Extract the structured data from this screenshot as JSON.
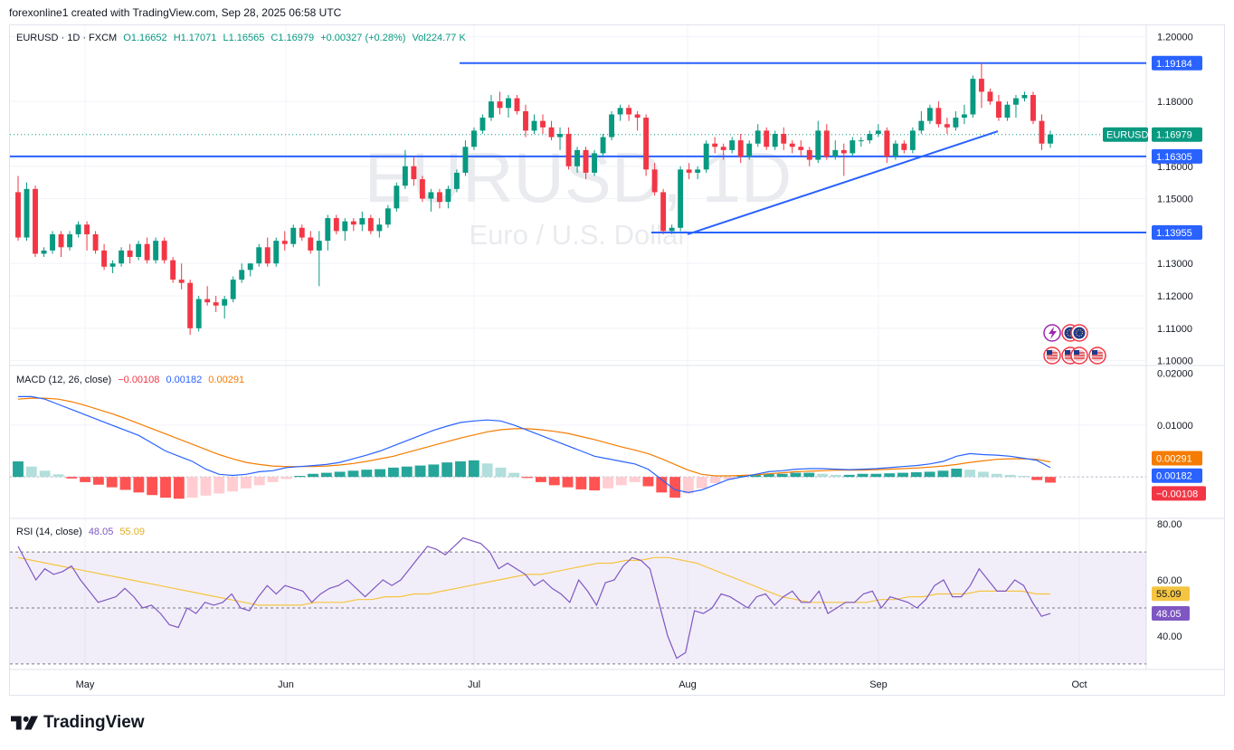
{
  "header": {
    "credit": "forexonline1 created with TradingView.com, Sep 28, 2025 06:58 UTC"
  },
  "legend": {
    "symbol": "EURUSD · 1D · FXCM",
    "open": "O1.16652",
    "high": "H1.17071",
    "low": "L1.16565",
    "close": "C1.16979",
    "change": "+0.00327 (+0.28%)",
    "volume": "Vol224.77 K"
  },
  "watermark": {
    "title": "EURUSD, 1D",
    "subtitle": "Euro / U.S. Dollar"
  },
  "macd_legend": {
    "label": "MACD (12, 26, close)",
    "hist": "−0.00108",
    "macd": "0.00182",
    "signal": "0.00291"
  },
  "rsi_legend": {
    "label": "RSI (14, close)",
    "rsi": "48.05",
    "ma": "55.09"
  },
  "brand": {
    "name": "TradingView"
  },
  "colors": {
    "up": "#089981",
    "down": "#f23645",
    "line": "#2962ff",
    "signal": "#f57c00",
    "rsi": "#7e57c2",
    "rsi_ma": "#f5c542"
  },
  "chart_data": [
    {
      "type": "candlestick",
      "ylim": [
        1.0985,
        1.2035
      ],
      "x_labels": [
        "May",
        "Jun",
        "Jul",
        "Aug",
        "Sep",
        "Oct"
      ],
      "y_ticks": [
        "1.20000",
        "1.18000",
        "1.16000",
        "1.15000",
        "1.13000",
        "1.12000",
        "1.11000",
        "1.10000"
      ],
      "price_labels": [
        {
          "text": "1.19184",
          "value": 1.19184
        },
        {
          "text": "1.16979",
          "value": 1.16979,
          "tag": "EURUSD"
        },
        {
          "text": "1.16305",
          "value": 1.16305
        },
        {
          "text": "1.13955",
          "value": 1.13955
        }
      ],
      "candles": [
        [
          1.152,
          1.157,
          1.137,
          1.138
        ],
        [
          1.138,
          1.155,
          1.137,
          1.153
        ],
        [
          1.153,
          1.154,
          1.132,
          1.133
        ],
        [
          1.133,
          1.135,
          1.132,
          1.134
        ],
        [
          1.134,
          1.14,
          1.133,
          1.139
        ],
        [
          1.139,
          1.14,
          1.132,
          1.135
        ],
        [
          1.135,
          1.14,
          1.134,
          1.139
        ],
        [
          1.139,
          1.143,
          1.138,
          1.142
        ],
        [
          1.142,
          1.143,
          1.134,
          1.139
        ],
        [
          1.139,
          1.14,
          1.133,
          1.134
        ],
        [
          1.134,
          1.136,
          1.128,
          1.129
        ],
        [
          1.129,
          1.131,
          1.127,
          1.13
        ],
        [
          1.13,
          1.135,
          1.129,
          1.134
        ],
        [
          1.134,
          1.136,
          1.13,
          1.132
        ],
        [
          1.132,
          1.137,
          1.131,
          1.136
        ],
        [
          1.136,
          1.138,
          1.13,
          1.131
        ],
        [
          1.131,
          1.138,
          1.13,
          1.137
        ],
        [
          1.137,
          1.138,
          1.13,
          1.131
        ],
        [
          1.131,
          1.132,
          1.124,
          1.125
        ],
        [
          1.125,
          1.13,
          1.122,
          1.124
        ],
        [
          1.124,
          1.125,
          1.108,
          1.11
        ],
        [
          1.11,
          1.12,
          1.109,
          1.119
        ],
        [
          1.119,
          1.123,
          1.117,
          1.118
        ],
        [
          1.118,
          1.12,
          1.115,
          1.117
        ],
        [
          1.117,
          1.12,
          1.113,
          1.119
        ],
        [
          1.119,
          1.126,
          1.118,
          1.125
        ],
        [
          1.125,
          1.13,
          1.124,
          1.128
        ],
        [
          1.128,
          1.13,
          1.126,
          1.13
        ],
        [
          1.13,
          1.136,
          1.129,
          1.135
        ],
        [
          1.135,
          1.138,
          1.129,
          1.13
        ],
        [
          1.13,
          1.138,
          1.129,
          1.137
        ],
        [
          1.137,
          1.14,
          1.134,
          1.136
        ],
        [
          1.136,
          1.142,
          1.135,
          1.141
        ],
        [
          1.141,
          1.142,
          1.137,
          1.138
        ],
        [
          1.138,
          1.14,
          1.133,
          1.134
        ],
        [
          1.134,
          1.14,
          1.123,
          1.137
        ],
        [
          1.137,
          1.145,
          1.134,
          1.144
        ],
        [
          1.144,
          1.145,
          1.139,
          1.14
        ],
        [
          1.14,
          1.144,
          1.137,
          1.143
        ],
        [
          1.143,
          1.144,
          1.14,
          1.142
        ],
        [
          1.142,
          1.146,
          1.14,
          1.144
        ],
        [
          1.144,
          1.145,
          1.139,
          1.14
        ],
        [
          1.14,
          1.144,
          1.138,
          1.142
        ],
        [
          1.142,
          1.148,
          1.141,
          1.147
        ],
        [
          1.147,
          1.155,
          1.146,
          1.154
        ],
        [
          1.154,
          1.165,
          1.153,
          1.16
        ],
        [
          1.16,
          1.163,
          1.154,
          1.156
        ],
        [
          1.156,
          1.157,
          1.149,
          1.15
        ],
        [
          1.15,
          1.153,
          1.146,
          1.152
        ],
        [
          1.152,
          1.153,
          1.147,
          1.149
        ],
        [
          1.149,
          1.154,
          1.147,
          1.153
        ],
        [
          1.153,
          1.159,
          1.152,
          1.158
        ],
        [
          1.158,
          1.168,
          1.157,
          1.166
        ],
        [
          1.166,
          1.172,
          1.165,
          1.171
        ],
        [
          1.171,
          1.176,
          1.17,
          1.175
        ],
        [
          1.175,
          1.182,
          1.174,
          1.18
        ],
        [
          1.18,
          1.183,
          1.176,
          1.178
        ],
        [
          1.178,
          1.182,
          1.175,
          1.181
        ],
        [
          1.181,
          1.182,
          1.176,
          1.177
        ],
        [
          1.177,
          1.179,
          1.169,
          1.171
        ],
        [
          1.171,
          1.176,
          1.17,
          1.174
        ],
        [
          1.174,
          1.176,
          1.17,
          1.172
        ],
        [
          1.172,
          1.174,
          1.168,
          1.169
        ],
        [
          1.169,
          1.172,
          1.165,
          1.17
        ],
        [
          1.17,
          1.172,
          1.159,
          1.16
        ],
        [
          1.16,
          1.166,
          1.158,
          1.165
        ],
        [
          1.165,
          1.166,
          1.156,
          1.158
        ],
        [
          1.158,
          1.165,
          1.157,
          1.164
        ],
        [
          1.164,
          1.17,
          1.163,
          1.169
        ],
        [
          1.169,
          1.177,
          1.168,
          1.176
        ],
        [
          1.176,
          1.179,
          1.174,
          1.178
        ],
        [
          1.178,
          1.179,
          1.174,
          1.176
        ],
        [
          1.176,
          1.177,
          1.171,
          1.175
        ],
        [
          1.175,
          1.176,
          1.157,
          1.159
        ],
        [
          1.159,
          1.161,
          1.151,
          1.152
        ],
        [
          1.152,
          1.153,
          1.139,
          1.14
        ],
        [
          1.14,
          1.142,
          1.139,
          1.141
        ],
        [
          1.141,
          1.16,
          1.14,
          1.159
        ],
        [
          1.159,
          1.161,
          1.156,
          1.158
        ],
        [
          1.158,
          1.16,
          1.156,
          1.159
        ],
        [
          1.159,
          1.168,
          1.158,
          1.167
        ],
        [
          1.167,
          1.169,
          1.164,
          1.166
        ],
        [
          1.166,
          1.167,
          1.162,
          1.165
        ],
        [
          1.165,
          1.169,
          1.164,
          1.168
        ],
        [
          1.168,
          1.17,
          1.161,
          1.163
        ],
        [
          1.163,
          1.168,
          1.162,
          1.167
        ],
        [
          1.167,
          1.173,
          1.166,
          1.171
        ],
        [
          1.171,
          1.172,
          1.165,
          1.166
        ],
        [
          1.166,
          1.171,
          1.165,
          1.17
        ],
        [
          1.17,
          1.172,
          1.165,
          1.167
        ],
        [
          1.167,
          1.168,
          1.164,
          1.166
        ],
        [
          1.166,
          1.168,
          1.163,
          1.165
        ],
        [
          1.165,
          1.166,
          1.16,
          1.162
        ],
        [
          1.162,
          1.174,
          1.161,
          1.171
        ],
        [
          1.171,
          1.173,
          1.162,
          1.163
        ],
        [
          1.163,
          1.168,
          1.162,
          1.165
        ],
        [
          1.165,
          1.167,
          1.157,
          1.164
        ],
        [
          1.164,
          1.169,
          1.163,
          1.168
        ],
        [
          1.168,
          1.169,
          1.166,
          1.168
        ],
        [
          1.168,
          1.171,
          1.167,
          1.17
        ],
        [
          1.17,
          1.173,
          1.169,
          1.171
        ],
        [
          1.171,
          1.172,
          1.161,
          1.163
        ],
        [
          1.163,
          1.168,
          1.162,
          1.167
        ],
        [
          1.167,
          1.168,
          1.164,
          1.165
        ],
        [
          1.165,
          1.172,
          1.164,
          1.171
        ],
        [
          1.171,
          1.177,
          1.17,
          1.174
        ],
        [
          1.174,
          1.179,
          1.173,
          1.178
        ],
        [
          1.178,
          1.18,
          1.172,
          1.173
        ],
        [
          1.173,
          1.175,
          1.17,
          1.172
        ],
        [
          1.172,
          1.177,
          1.171,
          1.175
        ],
        [
          1.175,
          1.179,
          1.173,
          1.176
        ],
        [
          1.176,
          1.188,
          1.175,
          1.187
        ],
        [
          1.187,
          1.192,
          1.178,
          1.183
        ],
        [
          1.183,
          1.184,
          1.179,
          1.18
        ],
        [
          1.18,
          1.182,
          1.174,
          1.175
        ],
        [
          1.175,
          1.18,
          1.174,
          1.179
        ],
        [
          1.179,
          1.182,
          1.175,
          1.181
        ],
        [
          1.181,
          1.183,
          1.18,
          1.182
        ],
        [
          1.182,
          1.183,
          1.173,
          1.174
        ],
        [
          1.174,
          1.176,
          1.165,
          1.167
        ],
        [
          1.167,
          1.171,
          1.1657,
          1.1698
        ]
      ]
    },
    {
      "type": "macd",
      "ylim": [
        -0.008,
        0.0215
      ],
      "y_ticks": [
        "0.02000",
        "0.01000"
      ],
      "labels": [
        {
          "text": "0.00291",
          "value": 0.00291,
          "role": "signal"
        },
        {
          "text": "0.00182",
          "value": 0.00182,
          "role": "macd"
        },
        {
          "text": "−0.00108",
          "value": -0.00108,
          "role": "hist"
        }
      ],
      "macd": [
        0.0155,
        0.0155,
        0.015,
        0.014,
        0.013,
        0.012,
        0.011,
        0.01,
        0.009,
        0.008,
        0.0065,
        0.005,
        0.004,
        0.003,
        0.0015,
        0.0005,
        0.0003,
        0.0005,
        0.001,
        0.0012,
        0.0018,
        0.002,
        0.0022,
        0.0024,
        0.0028,
        0.0035,
        0.0042,
        0.005,
        0.006,
        0.007,
        0.008,
        0.009,
        0.0098,
        0.0105,
        0.0108,
        0.011,
        0.0108,
        0.01,
        0.009,
        0.008,
        0.007,
        0.006,
        0.005,
        0.004,
        0.0035,
        0.003,
        0.0025,
        0.0015,
        -0.0005,
        -0.0025,
        -0.003,
        -0.0025,
        -0.0015,
        -0.0005,
        0.0,
        0.0005,
        0.001,
        0.0012,
        0.0015,
        0.0016,
        0.0016,
        0.0015,
        0.0014,
        0.0015,
        0.0016,
        0.0018,
        0.002,
        0.0022,
        0.0025,
        0.003,
        0.004,
        0.0045,
        0.0043,
        0.0042,
        0.004,
        0.0036,
        0.0032,
        0.0018
      ],
      "signal": [
        0.015,
        0.0152,
        0.0152,
        0.015,
        0.0145,
        0.0138,
        0.013,
        0.0122,
        0.0113,
        0.0103,
        0.0093,
        0.0083,
        0.0073,
        0.0063,
        0.0053,
        0.0043,
        0.0035,
        0.0028,
        0.0024,
        0.0021,
        0.002,
        0.002,
        0.002,
        0.0021,
        0.0023,
        0.0026,
        0.003,
        0.0035,
        0.004,
        0.0047,
        0.0054,
        0.0061,
        0.0068,
        0.0075,
        0.0081,
        0.0087,
        0.0091,
        0.0093,
        0.0093,
        0.0091,
        0.0088,
        0.0084,
        0.0078,
        0.0072,
        0.0065,
        0.0058,
        0.0052,
        0.0045,
        0.0035,
        0.0024,
        0.0013,
        0.0005,
        0.0002,
        0.0002,
        0.0003,
        0.0004,
        0.0006,
        0.0008,
        0.001,
        0.0011,
        0.0012,
        0.0013,
        0.0013,
        0.0013,
        0.0014,
        0.0015,
        0.0016,
        0.0017,
        0.0019,
        0.0021,
        0.0024,
        0.0028,
        0.0031,
        0.0034,
        0.0035,
        0.0035,
        0.0034,
        0.0029
      ],
      "hist": [
        0.003,
        0.002,
        0.0012,
        0.0005,
        -0.0003,
        -0.001,
        -0.0015,
        -0.002,
        -0.0025,
        -0.003,
        -0.0035,
        -0.004,
        -0.0042,
        -0.004,
        -0.0036,
        -0.0032,
        -0.0028,
        -0.0022,
        -0.0016,
        -0.001,
        -0.0004,
        0.0002,
        0.0006,
        0.0008,
        0.001,
        0.0012,
        0.0014,
        0.0015,
        0.0018,
        0.002,
        0.0022,
        0.0024,
        0.0028,
        0.003,
        0.0032,
        0.0026,
        0.0018,
        0.0008,
        -0.0002,
        -0.001,
        -0.0016,
        -0.002,
        -0.0024,
        -0.0026,
        -0.0022,
        -0.0016,
        -0.001,
        -0.0018,
        -0.003,
        -0.004,
        -0.0032,
        -0.0022,
        -0.0012,
        -0.0005,
        0.0002,
        0.0004,
        0.0006,
        0.0006,
        0.0008,
        0.0008,
        0.0006,
        0.0004,
        0.0004,
        0.0006,
        0.0006,
        0.0007,
        0.0008,
        0.0009,
        0.001,
        0.0012,
        0.0016,
        0.0014,
        0.001,
        0.0006,
        0.0004,
        0.0002,
        -0.0006,
        -0.0011
      ]
    },
    {
      "type": "rsi",
      "ylim": [
        28,
        82
      ],
      "y_ticks": [
        "80.00",
        "60.00",
        "40.00"
      ],
      "bands": [
        70,
        50,
        30
      ],
      "labels": [
        {
          "text": "55.09",
          "value": 55.09,
          "role": "ma"
        },
        {
          "text": "48.05",
          "value": 48.05,
          "role": "rsi"
        }
      ],
      "rsi": [
        72,
        66,
        60,
        64,
        62,
        63,
        65,
        60,
        56,
        52,
        53,
        54,
        57,
        54,
        50,
        51,
        48,
        44,
        43,
        50,
        48,
        52,
        51,
        52,
        55,
        50,
        49,
        54,
        58,
        55,
        58,
        57,
        56,
        52,
        55,
        57,
        58,
        60,
        57,
        54,
        57,
        60,
        58,
        60,
        64,
        68,
        72,
        71,
        69,
        72,
        75,
        74,
        73,
        70,
        64,
        66,
        64,
        62,
        58,
        60,
        57,
        55,
        52,
        60,
        56,
        51,
        59,
        60,
        65,
        68,
        67,
        64,
        52,
        40,
        32,
        34,
        49,
        48,
        50,
        55,
        54,
        52,
        50,
        54,
        55,
        51,
        54,
        56,
        52,
        52,
        56,
        48,
        50,
        52,
        52,
        55,
        56,
        50,
        54,
        53,
        52,
        50,
        53,
        58,
        60,
        54,
        54,
        58,
        64,
        60,
        56,
        56,
        60,
        58,
        52,
        47,
        48
      ],
      "rsi_ma": [
        68,
        67,
        66,
        65,
        64,
        63,
        62,
        61,
        60,
        59,
        58,
        57,
        56,
        55,
        54,
        53,
        52,
        51,
        51,
        51,
        51,
        52,
        52,
        52,
        53,
        53,
        54,
        54,
        55,
        55,
        56,
        57,
        58,
        59,
        60,
        61,
        62,
        62,
        63,
        64,
        65,
        66,
        66,
        67,
        67,
        68,
        68,
        67,
        66,
        64,
        62,
        60,
        58,
        56,
        54,
        53,
        52,
        52,
        52,
        52,
        52,
        53,
        53,
        54,
        54,
        55,
        55,
        55,
        56,
        56,
        56,
        56,
        55,
        55
      ]
    }
  ]
}
